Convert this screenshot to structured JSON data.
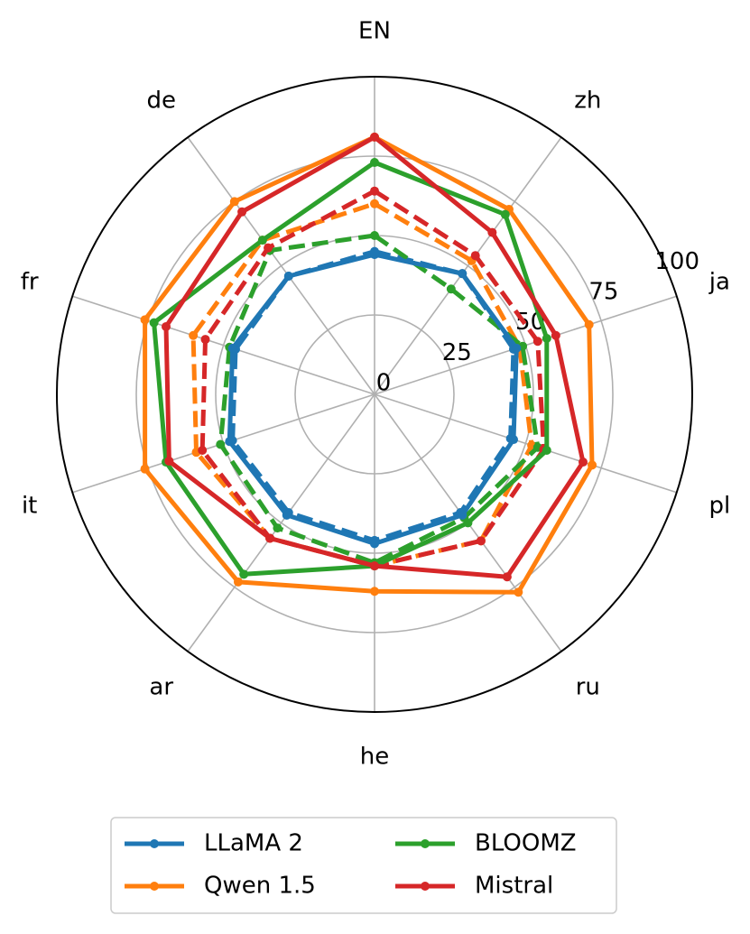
{
  "chart_data": {
    "type": "radar",
    "categories": [
      "EN",
      "zh",
      "ja",
      "pl",
      "ru",
      "he",
      "ar",
      "it",
      "fr",
      "de"
    ],
    "rlim": [
      0,
      100
    ],
    "rticks": [
      0,
      25,
      50,
      75,
      100
    ],
    "grid": true,
    "series": [
      {
        "name": "LLaMA 2",
        "color": "#1f77b4",
        "values": [
          44,
          47,
          47,
          46,
          47,
          47,
          47,
          48,
          47,
          46
        ],
        "dashed_values": [
          45,
          47,
          46,
          45,
          46,
          46,
          46,
          47,
          46,
          46
        ]
      },
      {
        "name": "Qwen 1.5",
        "color": "#ff7f0e",
        "values": [
          81,
          72,
          71,
          72,
          77,
          62,
          73,
          76,
          76,
          75
        ],
        "dashed_values": [
          60,
          52,
          48,
          52,
          57,
          54,
          56,
          59,
          60,
          60
        ]
      },
      {
        "name": "BLOOMZ",
        "color": "#2ca02c",
        "values": [
          73,
          70,
          57,
          57,
          50,
          54,
          70,
          69,
          73,
          60
        ],
        "dashed_values": [
          50,
          41,
          49,
          54,
          48,
          53,
          52,
          51,
          48,
          56
        ]
      },
      {
        "name": "Mistral",
        "color": "#d62728",
        "values": [
          81,
          63,
          60,
          69,
          71,
          54,
          56,
          68,
          69,
          71
        ],
        "dashed_values": [
          64,
          54,
          54,
          56,
          57,
          54,
          56,
          57,
          56,
          57
        ]
      }
    ]
  }
}
